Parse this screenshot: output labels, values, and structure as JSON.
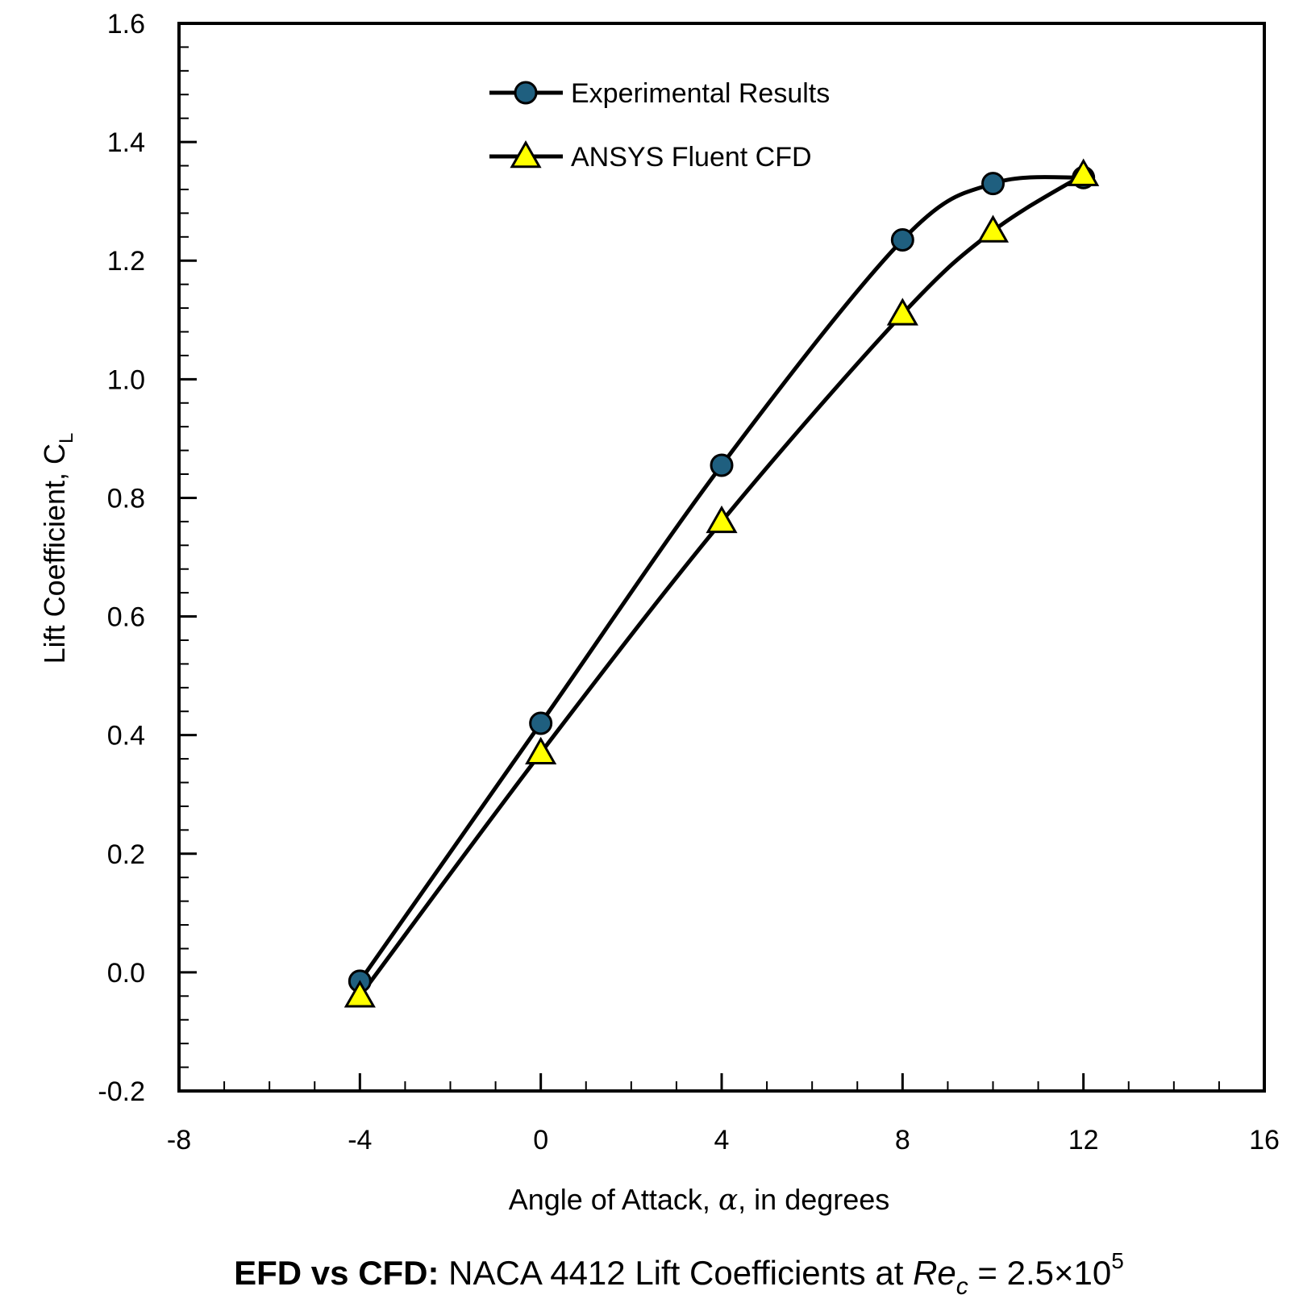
{
  "chart_data": {
    "type": "line",
    "caption": {
      "bold": "EFD vs CFD:",
      "text": " NACA 4412 Lift Coefficients at ",
      "re": "Re",
      "re_sub": "c",
      "equals": " = 2.5×10",
      "exp": "5"
    },
    "xlabel": {
      "pre": "Angle of Attack, ",
      "symbol": "α",
      "post": ", in degrees"
    },
    "ylabel": {
      "main": "Lift Coefficient, C",
      "sub": "L"
    },
    "xlim": [
      -8,
      16
    ],
    "ylim": [
      -0.2,
      1.6
    ],
    "xticks": [
      -8,
      -4,
      0,
      4,
      8,
      12,
      16
    ],
    "yticks": [
      -0.2,
      0.0,
      0.2,
      0.4,
      0.6,
      0.8,
      1.0,
      1.2,
      1.4,
      1.6
    ],
    "xtick_labels": [
      "-8",
      "-4",
      "0",
      "4",
      "8",
      "12",
      "16"
    ],
    "ytick_labels": [
      "-0.2",
      "0.0",
      "0.2",
      "0.4",
      "0.6",
      "0.8",
      "1.0",
      "1.2",
      "1.4",
      "1.6"
    ],
    "x_minor_step": 1,
    "y_minor_step": 0.04,
    "grid": false,
    "smooth": true,
    "legend_position": "top-center",
    "series": [
      {
        "name": "Experimental Results",
        "marker": "circle",
        "marker_fill": "#1f5f7f",
        "line_color": "#000000",
        "x": [
          -4,
          0,
          4,
          8,
          10,
          12
        ],
        "y": [
          -0.015,
          0.42,
          0.855,
          1.235,
          1.33,
          1.34
        ]
      },
      {
        "name": "ANSYS Fluent CFD",
        "marker": "triangle",
        "marker_fill": "#ffff00",
        "line_color": "#000000",
        "x": [
          -4,
          0,
          4,
          8,
          10,
          12
        ],
        "y": [
          -0.04,
          0.37,
          0.76,
          1.11,
          1.25,
          1.345
        ]
      }
    ]
  }
}
